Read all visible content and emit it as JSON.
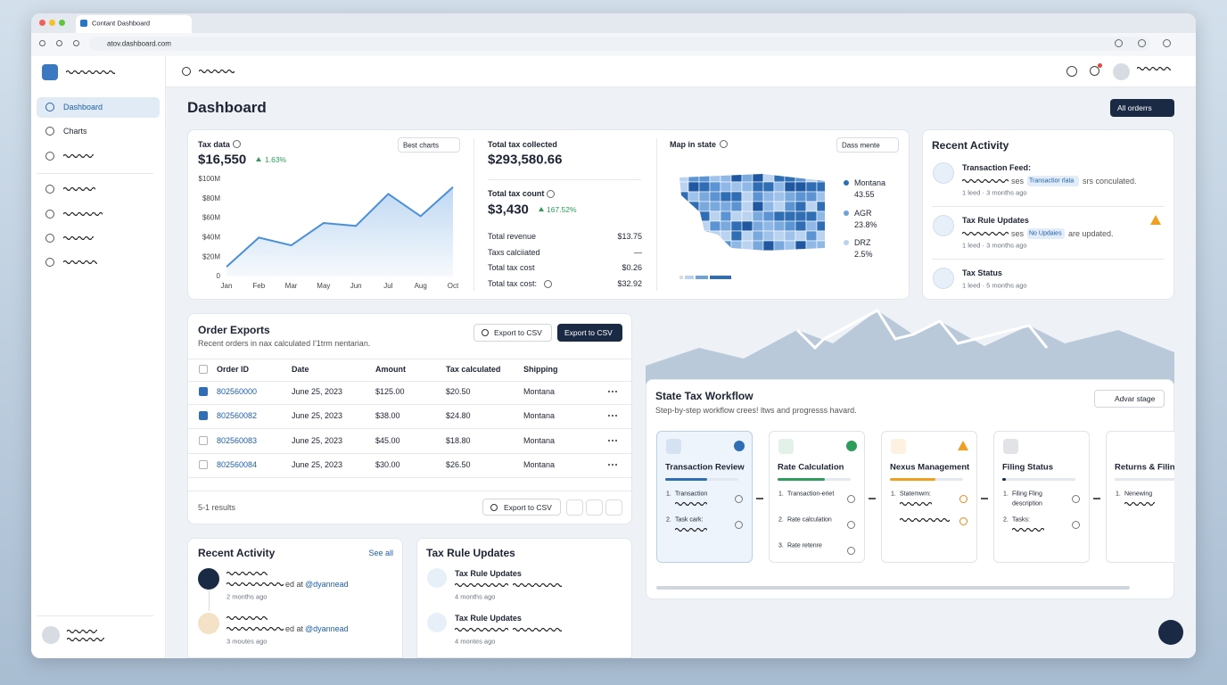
{
  "browser": {
    "tab_title": "Contant Dashboard",
    "url": "atov.dashboard.com"
  },
  "sidebar": {
    "nav": [
      "Dashboard",
      "Charts"
    ]
  },
  "header": {
    "page_title": "Dashboard",
    "filter_button": "All orderrs"
  },
  "tax_data": {
    "label": "Tax data",
    "value": "$16,550",
    "change": "1.63%",
    "dropdown": "Best charts",
    "chart": {
      "type": "line",
      "categories": [
        "Jan",
        "Feb",
        "Mar",
        "May",
        "Jun",
        "Jul",
        "Aug",
        "Oct"
      ],
      "values": [
        10,
        40,
        32,
        55,
        52,
        85,
        62,
        92
      ],
      "color": "#4a90d9",
      "ylim": [
        0,
        100
      ],
      "yticks": [
        0,
        {
          "value": 20,
          "label": "$20M"
        },
        {
          "value": 40,
          "label": "$40M"
        },
        {
          "value": 60,
          "label": "$60M"
        },
        {
          "value": 80,
          "label": "$80M"
        },
        {
          "value": 100,
          "label": "$100M"
        }
      ],
      "grid": false
    }
  },
  "totals": {
    "collected_label": "Total tax collected",
    "collected_value": "$293,580.66",
    "count_label": "Total tax count",
    "count_value": "$3,430",
    "count_change": "167.52%",
    "rows": [
      [
        "Total revenue",
        "$13.75"
      ],
      [
        "Taxs calciiated",
        "—"
      ],
      [
        "Total tax cost",
        "$0.26"
      ],
      [
        "Total tax cost:",
        "$32.92"
      ]
    ]
  },
  "map": {
    "title": "Map in state",
    "dropdown": "Dass mente",
    "legend": [
      {
        "name": "Montana",
        "value": "43.55"
      },
      {
        "name": "AGR",
        "value": "23.8%"
      },
      {
        "name": "DRZ",
        "value": "2.5%"
      }
    ]
  },
  "activity_panel": {
    "title": "Recent Activity",
    "items": [
      {
        "title": "Transaction Feed:",
        "pre": "ses",
        "badge": "Transactior rlata",
        "post": "srs conculated.",
        "meta": "1 leed · 3 months ago"
      },
      {
        "title": "Tax Rule Updates",
        "pre": "ses",
        "badge": "No Updaies",
        "post": "are updated.",
        "meta": "1 leed · 3 months ago"
      },
      {
        "title": "Tax Status",
        "meta": "1 leed · 5 months ago"
      }
    ]
  },
  "order_exports": {
    "title": "Order Exports",
    "subtitle": "Recent orders in nax calculated I'1trm nentarian.",
    "buttons": [
      "Export to CSV",
      "Export to CSV",
      "Export to CSV"
    ],
    "columns": [
      "Order ID",
      "Date",
      "Amount",
      "Tax calculated",
      "Shipping"
    ],
    "rows": [
      [
        "802560000",
        "June 25, 2023",
        "$125.00",
        "$20.50",
        "Montana"
      ],
      [
        "802560082",
        "June 25, 2023",
        "$38.00",
        "$24.80",
        "Montana"
      ],
      [
        "802560083",
        "June 25, 2023",
        "$45.00",
        "$18.80",
        "Montana"
      ],
      [
        "802560084",
        "June 25, 2023",
        "$30.00",
        "$26.50",
        "Montana"
      ]
    ],
    "footer": "5-1 results"
  },
  "workflow": {
    "title": "State Tax Workflow",
    "subtitle": "Step-by-step workflow crees! ltws and progresss havard.",
    "button": "Advar stage",
    "stages": [
      {
        "name": "Transaction Review",
        "steps": [
          {
            "n": "1.",
            "text": "Transaction"
          },
          {
            "n": "2.",
            "text": "Task cark:"
          }
        ]
      },
      {
        "name": "Rate Calculation",
        "steps": [
          {
            "n": "1.",
            "text": "Transaction-eriet"
          },
          {
            "n": "2.",
            "text": "Rate calculation"
          },
          {
            "n": "3.",
            "text": "Rate retenre"
          }
        ]
      },
      {
        "name": "Nexus Management",
        "steps": [
          {
            "n": "1.",
            "text": "Statemwm:"
          }
        ]
      },
      {
        "name": "Filing Status",
        "steps": [
          {
            "n": "1.",
            "text": "Filing Fling description"
          },
          {
            "n": "2.",
            "text": "Tasks:"
          }
        ]
      },
      {
        "name": "Returns & Filing",
        "steps": [
          {
            "n": "1.",
            "text": "Nenewing"
          }
        ]
      }
    ]
  },
  "recent_activity": {
    "title": "Recent Activity",
    "link": "See all",
    "items": [
      {
        "suffix": "ed at",
        "handle": "@dyannead",
        "meta": "2 months ago"
      },
      {
        "suffix": "ed at",
        "handle": "@dyannead",
        "meta": "3 moutes ago"
      }
    ]
  },
  "tax_rule_updates": {
    "title": "Tax Rule Updates",
    "items": [
      {
        "title": "Tax Rule Updates",
        "meta": "4 months ago"
      },
      {
        "title": "Tax Rule Updates",
        "meta": "4 montes ago"
      }
    ]
  }
}
